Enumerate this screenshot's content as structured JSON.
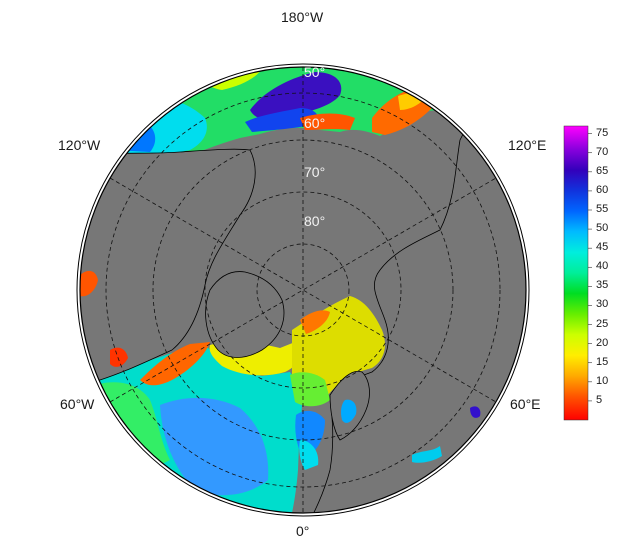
{
  "map": {
    "projection": "north-polar-stereographic",
    "ocean_color": "#777777",
    "coast_color": "#000000",
    "grid_style": "dashed",
    "longitude_labels": [
      "180°W",
      "120°E",
      "60°E",
      "0°",
      "60°W",
      "120°W"
    ],
    "latitude_labels": [
      "50°",
      "60°",
      "70°",
      "80°"
    ]
  },
  "colorbar": {
    "ticks": [
      "75",
      "70",
      "65",
      "60",
      "55",
      "50",
      "45",
      "40",
      "35",
      "30",
      "25",
      "20",
      "15",
      "10",
      "5"
    ],
    "range": [
      0,
      77
    ],
    "colors": [
      "#ff0000",
      "#ff5500",
      "#ffaa00",
      "#ffee00",
      "#ccff00",
      "#66ee00",
      "#00dd22",
      "#00ee99",
      "#00eedd",
      "#00bbff",
      "#0066ff",
      "#1133dd",
      "#3300bb",
      "#8800dd",
      "#ff00ff"
    ]
  }
}
